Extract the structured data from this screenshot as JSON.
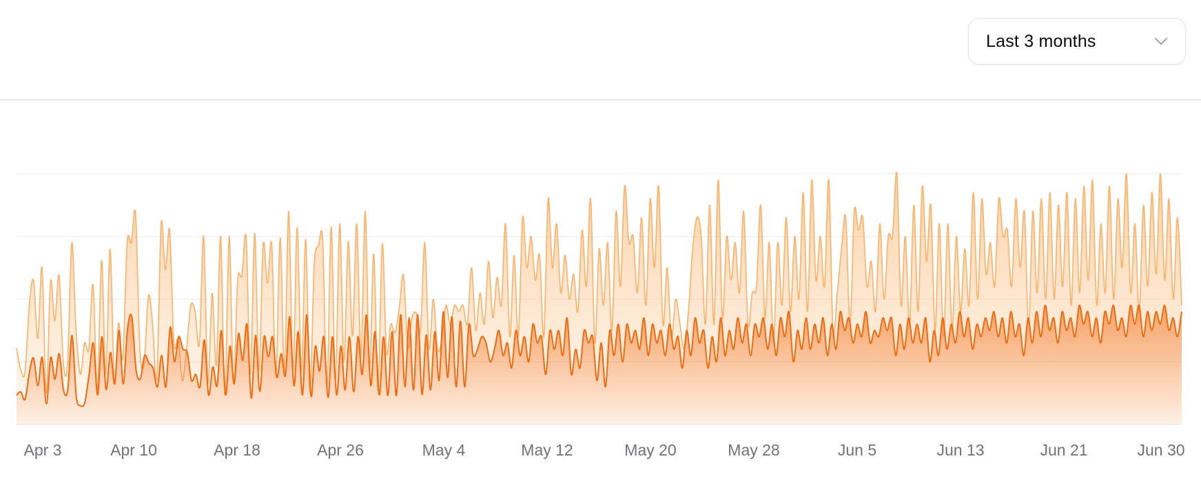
{
  "controls": {
    "range_select": {
      "selected": "Last 3 months",
      "icon": "chevron-down-icon"
    }
  },
  "colors": {
    "series_light": "#fdb066",
    "series_dark": "#f06a10",
    "grid": "#ececec",
    "tick_text": "#71717a"
  },
  "chart_data": {
    "type": "area",
    "title": "",
    "xlabel": "",
    "ylabel": "",
    "grid": true,
    "legend": "none",
    "y_axis_labels_visible": false,
    "x_tick_labels": [
      "Apr 3",
      "Apr 10",
      "Apr 18",
      "Apr 26",
      "May 4",
      "May 12",
      "May 20",
      "May 28",
      "Jun 5",
      "Jun 13",
      "Jun 21",
      "Jun 30"
    ],
    "x_range": [
      "Apr 1",
      "Jun 30"
    ],
    "ylim": [
      0,
      400
    ],
    "series": [
      {
        "color": "#fdb066",
        "values": [
          122,
          87,
          84,
          190,
          230,
          137,
          250,
          50,
          228,
          165,
          238,
          98,
          98,
          290,
          150,
          80,
          130,
          120,
          223,
          55,
          262,
          80,
          280,
          71,
          162,
          106,
          290,
          290,
          335,
          120,
          97,
          205,
          160,
          75,
          320,
          247,
          310,
          130,
          136,
          70,
          122,
          190,
          180,
          128,
          300,
          67,
          209,
          95,
          300,
          47,
          300,
          67,
          230,
          237,
          298,
          80,
          305,
          85,
          287,
          225,
          288,
          79,
          298,
          85,
          340,
          83,
          314,
          83,
          295,
          52,
          255,
          285,
          293,
          56,
          315,
          70,
          320,
          100,
          292,
          141,
          320,
          110,
          340,
          88,
          272,
          54,
          288,
          115,
          160,
          146,
          185,
          238,
          123,
          170,
          178,
          150,
          290,
          121,
          200,
          120,
          135,
          190,
          160,
          190,
          180,
          190,
          160,
          250,
          150,
          210,
          160,
          260,
          170,
          235,
          190,
          320,
          140,
          270,
          140,
          330,
          250,
          300,
          230,
          270,
          140,
          360,
          250,
          320,
          210,
          270,
          200,
          240,
          180,
          310,
          220,
          360,
          130,
          280,
          190,
          290,
          150,
          340,
          220,
          380,
          290,
          300,
          210,
          330,
          190,
          360,
          250,
          380,
          160,
          250,
          140,
          200,
          160,
          120,
          180,
          280,
          330,
          300,
          160,
          350,
          160,
          390,
          170,
          300,
          230,
          290,
          210,
          340,
          160,
          210,
          220,
          350,
          170,
          290,
          130,
          290,
          190,
          330,
          180,
          300,
          200,
          370,
          180,
          390,
          230,
          300,
          220,
          390,
          150,
          210,
          280,
          330,
          160,
          340,
          310,
          330,
          220,
          260,
          180,
          320,
          200,
          300,
          300,
          400,
          190,
          300,
          160,
          350,
          180,
          380,
          260,
          350,
          150,
          320,
          140,
          320,
          150,
          300,
          180,
          280,
          190,
          370,
          200,
          360,
          240,
          290,
          220,
          360,
          300,
          310,
          220,
          360,
          250,
          340,
          160,
          340,
          210,
          360,
          200,
          370,
          200,
          350,
          220,
          370,
          190,
          360,
          210,
          380,
          230,
          390,
          190,
          320,
          210,
          380,
          200,
          360,
          250,
          400,
          210,
          320,
          180,
          350,
          220,
          370,
          240,
          400,
          230,
          360,
          200,
          330,
          190
        ]
      },
      {
        "color": "#f06a10",
        "values": [
          47,
          52,
          40,
          83,
          106,
          62,
          107,
          33,
          107,
          72,
          113,
          55,
          55,
          142,
          45,
          30,
          35,
          80,
          130,
          47,
          140,
          56,
          115,
          65,
          150,
          65,
          152,
          172,
          88,
          73,
          110,
          98,
          90,
          60,
          110,
          60,
          155,
          100,
          140,
          120,
          115,
          70,
          80,
          60,
          135,
          47,
          92,
          62,
          150,
          47,
          125,
          65,
          145,
          102,
          160,
          42,
          142,
          53,
          140,
          108,
          140,
          75,
          113,
          78,
          172,
          62,
          148,
          47,
          175,
          45,
          125,
          85,
          140,
          43,
          140,
          47,
          125,
          55,
          140,
          52,
          140,
          80,
          175,
          62,
          148,
          47,
          140,
          46,
          148,
          46,
          175,
          60,
          170,
          55,
          175,
          48,
          143,
          55,
          148,
          70,
          180,
          75,
          172,
          60,
          165,
          60,
          160,
          110,
          120,
          140,
          130,
          100,
          120,
          150,
          110,
          130,
          90,
          150,
          110,
          140,
          100,
          160,
          130,
          140,
          80,
          150,
          120,
          150,
          110,
          170,
          80,
          120,
          90,
          150,
          130,
          140,
          70,
          130,
          60,
          150,
          110,
          160,
          100,
          160,
          130,
          150,
          120,
          170,
          110,
          160,
          130,
          150,
          110,
          160,
          120,
          140,
          90,
          150,
          110,
          170,
          130,
          150,
          90,
          140,
          100,
          170,
          110,
          150,
          120,
          170,
          130,
          160,
          110,
          160,
          140,
          170,
          120,
          160,
          110,
          170,
          140,
          180,
          100,
          150,
          120,
          170,
          120,
          160,
          130,
          170,
          110,
          160,
          120,
          180,
          150,
          170,
          130,
          160,
          140,
          180,
          130,
          150,
          140,
          170,
          150,
          170,
          110,
          160,
          120,
          170,
          130,
          160,
          130,
          170,
          100,
          150,
          110,
          170,
          120,
          160,
          130,
          180,
          140,
          170,
          120,
          160,
          140,
          170,
          150,
          180,
          140,
          170,
          130,
          180,
          140,
          160,
          110,
          170,
          130,
          180,
          140,
          190,
          150,
          170,
          130,
          180,
          150,
          170,
          140,
          190,
          160,
          180,
          140,
          170,
          130,
          180,
          160,
          190,
          150,
          170,
          140,
          190,
          160,
          190,
          140,
          180,
          150,
          180,
          160,
          190,
          150,
          170,
          140,
          180
        ]
      }
    ]
  }
}
